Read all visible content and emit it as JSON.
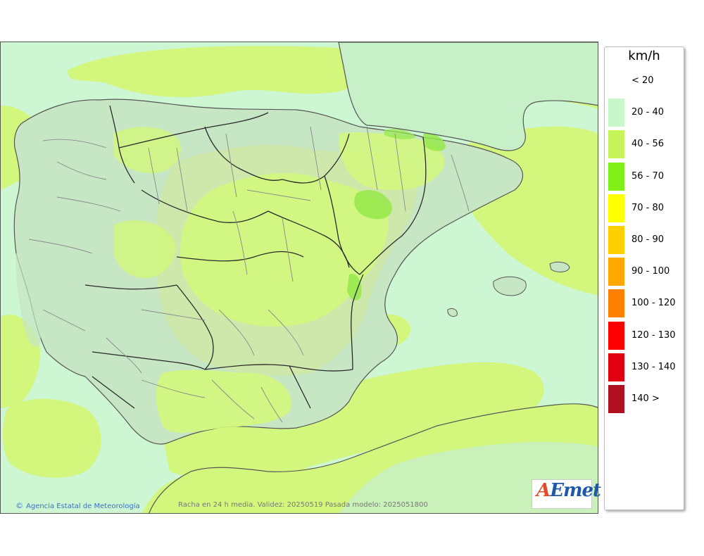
{
  "legend": {
    "title": "km/h",
    "items": [
      {
        "label": "< 20",
        "color": "#ffffff"
      },
      {
        "label": "20 - 40",
        "color": "#c8f7cc"
      },
      {
        "label": "40 - 56",
        "color": "#c6f55b"
      },
      {
        "label": "56 - 70",
        "color": "#80f018"
      },
      {
        "label": "70 - 80",
        "color": "#ffff00"
      },
      {
        "label": "80 - 90",
        "color": "#ffd000"
      },
      {
        "label": "90 - 100",
        "color": "#ffa800"
      },
      {
        "label": "100 - 120",
        "color": "#ff7f00"
      },
      {
        "label": "120 - 130",
        "color": "#ff0000"
      },
      {
        "label": "130 - 140",
        "color": "#e00010"
      },
      {
        "label": "140 >",
        "color": "#b01020"
      }
    ]
  },
  "footer": {
    "credit": "Agencia Estatal de Meteorología",
    "caption": "Racha en 24 h media. Validez: 20250519 Pasada modelo: 2025051800"
  },
  "logo": {
    "wordmark": "AEmet",
    "subtitle": "Agencia Estatal de Meteorología"
  },
  "colors": {
    "sea_low": "#cdf6d2",
    "band_40_56": "#d2f77c",
    "band_56_70": "#95e84a",
    "land": "#c6e6c4",
    "border_region": "#8a8a8a",
    "border_autonomy": "#2a2a2a"
  }
}
